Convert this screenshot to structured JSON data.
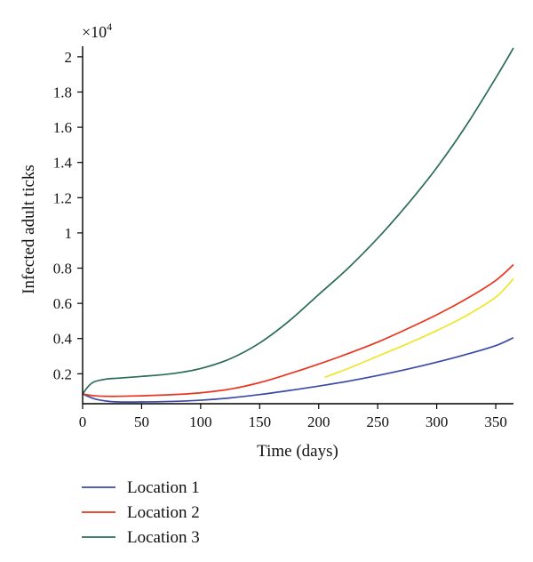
{
  "chart_data": {
    "type": "line",
    "multiplier": "×10",
    "multiplier_exp": "4",
    "xlabel": "Time (days)",
    "ylabel": "Infected adult ticks",
    "xlim": [
      0,
      365
    ],
    "ylim": [
      0.03,
      2.06
    ],
    "xticks": [
      0,
      50,
      100,
      150,
      200,
      250,
      300,
      350
    ],
    "xtick_labels": [
      "0",
      "50",
      "100",
      "150",
      "200",
      "250",
      "300",
      "350"
    ],
    "yticks": [
      0.2,
      0.4,
      0.6,
      0.8,
      1.0,
      1.2,
      1.4,
      1.6,
      1.8,
      2.0
    ],
    "ytick_labels": [
      "0.2",
      "0.4",
      "0.6",
      "0.8",
      "1",
      "1.2",
      "1.4",
      "1.6",
      "1.8",
      "2"
    ],
    "grid": false,
    "legend_position": "bottom-left",
    "series": [
      {
        "name": "Location 1",
        "color": "#3a4aa6",
        "x": [
          0,
          10,
          20,
          30,
          50,
          75,
          100,
          125,
          150,
          175,
          200,
          225,
          250,
          275,
          300,
          325,
          350,
          365
        ],
        "y": [
          0.085,
          0.058,
          0.045,
          0.04,
          0.04,
          0.043,
          0.05,
          0.063,
          0.082,
          0.105,
          0.13,
          0.158,
          0.19,
          0.226,
          0.266,
          0.31,
          0.36,
          0.405
        ]
      },
      {
        "name": "Location 2",
        "color": "#e8361e",
        "x": [
          0,
          10,
          20,
          30,
          50,
          75,
          100,
          125,
          150,
          175,
          200,
          225,
          250,
          275,
          300,
          325,
          350,
          365
        ],
        "y": [
          0.085,
          0.075,
          0.072,
          0.072,
          0.075,
          0.081,
          0.092,
          0.113,
          0.15,
          0.2,
          0.255,
          0.315,
          0.38,
          0.455,
          0.535,
          0.625,
          0.73,
          0.82
        ]
      },
      {
        "name": "Location 3",
        "color": "#2a6b5a",
        "x": [
          0,
          5,
          10,
          20,
          30,
          50,
          75,
          100,
          125,
          150,
          175,
          200,
          225,
          250,
          275,
          300,
          325,
          350,
          365
        ],
        "y": [
          0.085,
          0.13,
          0.155,
          0.17,
          0.175,
          0.185,
          0.2,
          0.23,
          0.285,
          0.375,
          0.5,
          0.65,
          0.8,
          0.97,
          1.16,
          1.37,
          1.61,
          1.88,
          2.05
        ]
      },
      {
        "color": "#f0e52a",
        "x": [
          205,
          225,
          250,
          275,
          300,
          325,
          350,
          365
        ],
        "y": [
          0.18,
          0.23,
          0.3,
          0.37,
          0.445,
          0.53,
          0.635,
          0.74
        ]
      }
    ]
  }
}
